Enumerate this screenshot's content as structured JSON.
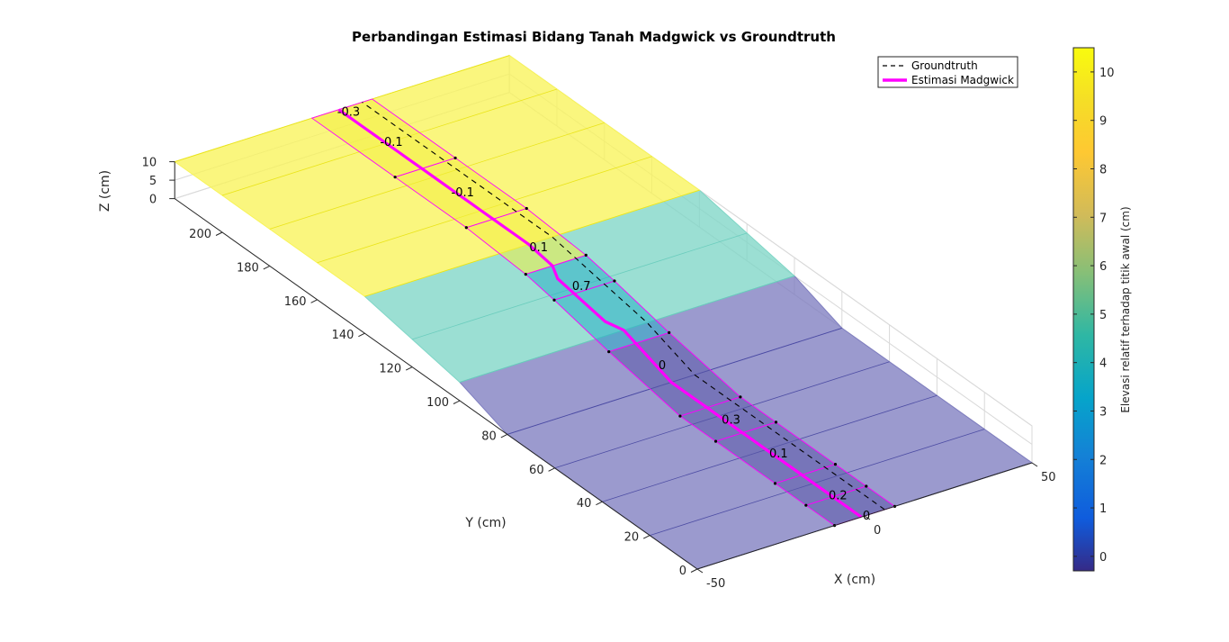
{
  "chart_data": {
    "type": "surface-3d",
    "title": "Perbandingan Estimasi Bidang Tanah Madgwick vs Groundtruth",
    "xlabel": "X (cm)",
    "ylabel": "Y (cm)",
    "zlabel": "Z (cm)",
    "xlim": [
      -50,
      50
    ],
    "ylim": [
      0,
      220
    ],
    "zlim": [
      0,
      10
    ],
    "x_ticks": [
      "-50",
      "0",
      "50"
    ],
    "y_ticks": [
      "0",
      "20",
      "40",
      "60",
      "80",
      "100",
      "120",
      "140",
      "160",
      "180",
      "200"
    ],
    "z_ticks": [
      "0",
      "5",
      "10"
    ],
    "grid": true,
    "view": "3d",
    "legend": {
      "placement": "top-right",
      "entries": [
        {
          "label": "Groundtruth",
          "style": "dashed",
          "color": "#000000"
        },
        {
          "label": "Estimasi Madgwick",
          "style": "solid",
          "color": "#ff00ff"
        }
      ]
    },
    "colorbar": {
      "label": "Elevasi relatif terhadap titik awal (cm)",
      "ticks": [
        "0",
        "1",
        "2",
        "3",
        "4",
        "5",
        "6",
        "7",
        "8",
        "9",
        "10"
      ],
      "range": [
        -0.3,
        10.5
      ]
    },
    "groundtruth_surface": {
      "y_breaks": [
        0,
        80,
        100,
        140,
        220
      ],
      "z_levels": [
        0,
        0,
        5,
        10,
        10
      ]
    },
    "segment_labels": [
      {
        "text": "0",
        "y": 0
      },
      {
        "text": "0.2",
        "y": 12
      },
      {
        "text": "0.1",
        "y": 37
      },
      {
        "text": "0.3",
        "y": 57
      },
      {
        "text": "0",
        "y": 86
      },
      {
        "text": "0.7",
        "y": 120
      },
      {
        "text": "0.1",
        "y": 138
      },
      {
        "text": "-0.1",
        "y": 170
      },
      {
        "text": "-0.1",
        "y": 200
      },
      {
        "text": "-0.3",
        "y": 218
      }
    ]
  },
  "colors": {
    "high": "#f8f45a",
    "mid": "#7fd6c6",
    "low": "#7f7ec0",
    "estimate": "#ff00ff",
    "groundtruth": "#000000"
  }
}
